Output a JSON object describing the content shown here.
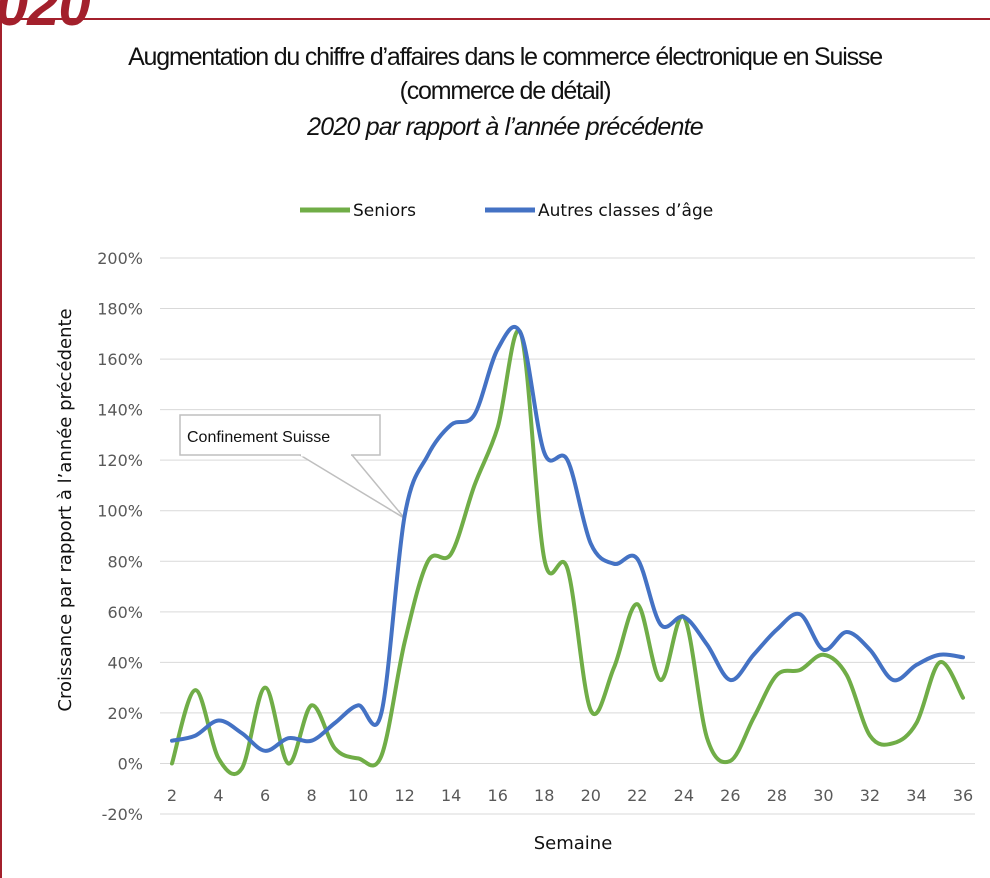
{
  "corner_label": "020",
  "chart_data": {
    "type": "line",
    "title_lines": [
      "Augmentation du chiffre d’affaires dans le commerce électronique en Suisse",
      "(commerce de détail)"
    ],
    "subtitle": "2020 par rapport à l’année précédente",
    "xlabel": "Semaine",
    "ylabel": "Croissance par rapport à l’année précédente",
    "ylim": [
      -20,
      200
    ],
    "xlim": [
      2,
      36
    ],
    "x_ticks": [
      2,
      4,
      6,
      8,
      10,
      12,
      14,
      16,
      18,
      20,
      22,
      24,
      26,
      28,
      30,
      32,
      34,
      36
    ],
    "y_ticks": [
      -20,
      0,
      20,
      40,
      60,
      80,
      100,
      120,
      140,
      160,
      180,
      200
    ],
    "y_tick_labels": [
      "-20%",
      "0%",
      "20%",
      "40%",
      "60%",
      "80%",
      "100%",
      "120%",
      "140%",
      "160%",
      "180%",
      "200%"
    ],
    "grid": true,
    "legend_position": "top",
    "x": [
      2,
      3,
      4,
      5,
      6,
      7,
      8,
      9,
      10,
      11,
      12,
      13,
      14,
      15,
      16,
      17,
      18,
      19,
      20,
      21,
      22,
      23,
      24,
      25,
      26,
      27,
      28,
      29,
      30,
      31,
      32,
      33,
      34,
      35,
      36
    ],
    "series": [
      {
        "name": "Seniors",
        "color": "#70ad47",
        "values": [
          0,
          29,
          2,
          -2,
          30,
          0,
          23,
          6,
          2,
          3,
          48,
          80,
          83,
          110,
          133,
          170,
          81,
          77,
          21,
          38,
          63,
          33,
          58,
          10,
          1,
          18,
          35,
          37,
          43,
          35,
          11,
          8,
          16,
          40,
          26
        ]
      },
      {
        "name": "Autres classes d’âge",
        "color": "#4472c4",
        "values": [
          9,
          11,
          17,
          12,
          5,
          10,
          9,
          16,
          23,
          20,
          98,
          122,
          134,
          138,
          164,
          170,
          123,
          120,
          87,
          79,
          81,
          55,
          58,
          47,
          33,
          43,
          53,
          59,
          45,
          52,
          45,
          33,
          39,
          43,
          42
        ]
      }
    ],
    "annotations": [
      {
        "text": "Confinement Suisse",
        "x": 12,
        "y": 97
      }
    ]
  }
}
